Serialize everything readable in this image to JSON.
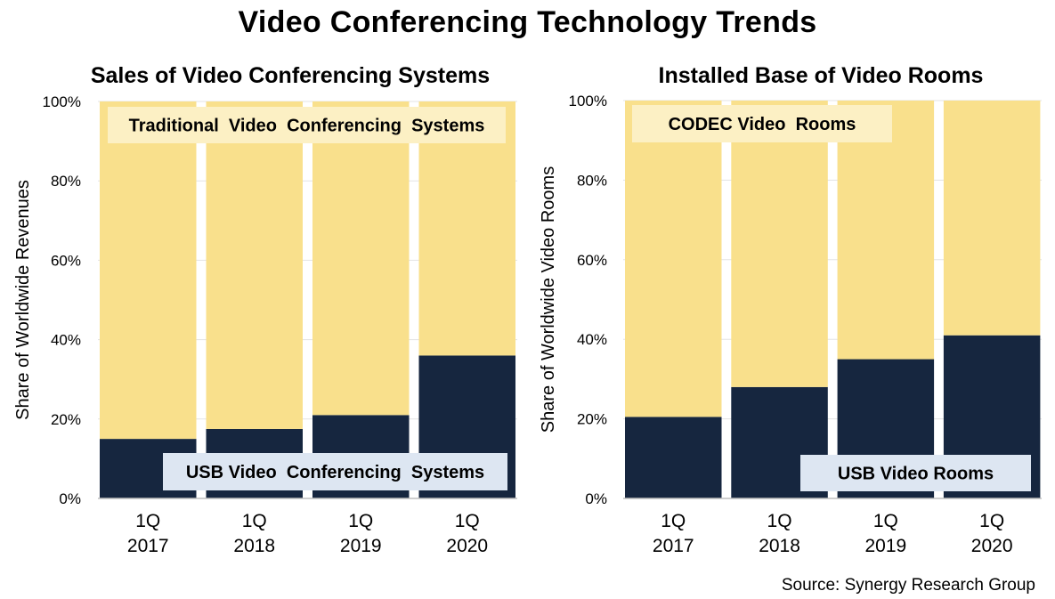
{
  "title": "Video Conferencing Technology Trends",
  "source": "Source: Synergy Research Group",
  "colors": {
    "top": "#F9E08C",
    "bottom": "#16263F",
    "top_label_bg": "#FCF0C4",
    "bottom_label_bg": "#DDE6F2"
  },
  "chart_data": [
    {
      "type": "bar",
      "stacked": true,
      "title": "Sales of Video Conferencing Systems",
      "ylabel": "Share of Worldwide Revenues",
      "xlabel": "",
      "ylim": [
        0,
        100
      ],
      "yticks": [
        "0%",
        "20%",
        "40%",
        "60%",
        "80%",
        "100%"
      ],
      "categories": [
        [
          "1Q",
          "2017"
        ],
        [
          "1Q",
          "2018"
        ],
        [
          "1Q",
          "2019"
        ],
        [
          "1Q",
          "2020"
        ]
      ],
      "series": [
        {
          "name": "USB Video Conferencing Systems",
          "values": [
            15,
            17.5,
            21,
            36
          ]
        },
        {
          "name": "Traditional Video Conferencing Systems",
          "values": [
            85,
            82.5,
            79,
            64
          ]
        }
      ],
      "labels": {
        "top": "Traditional  Video  Conferencing  Systems",
        "bottom": "USB Video  Conferencing  Systems"
      }
    },
    {
      "type": "bar",
      "stacked": true,
      "title": "Installed Base of Video Rooms",
      "ylabel": "Share of Worldwide Video Rooms",
      "xlabel": "",
      "ylim": [
        0,
        100
      ],
      "yticks": [
        "0%",
        "20%",
        "40%",
        "60%",
        "80%",
        "100%"
      ],
      "categories": [
        [
          "1Q",
          "2017"
        ],
        [
          "1Q",
          "2018"
        ],
        [
          "1Q",
          "2019"
        ],
        [
          "1Q",
          "2020"
        ]
      ],
      "series": [
        {
          "name": "USB Video Rooms",
          "values": [
            20.5,
            28,
            35,
            41
          ]
        },
        {
          "name": "CODEC Video Rooms",
          "values": [
            79.5,
            72,
            65,
            59
          ]
        }
      ],
      "labels": {
        "top": "CODEC Video  Rooms",
        "bottom": "USB Video Rooms"
      }
    }
  ]
}
